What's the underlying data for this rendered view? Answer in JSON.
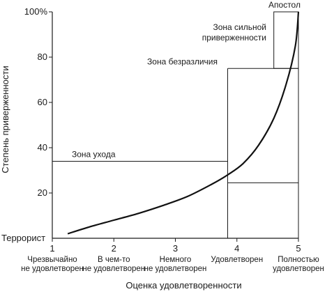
{
  "chart_data": {
    "type": "line",
    "title": "",
    "xlabel": "Оценка удовлетворенности",
    "ylabel": "Степень приверженности",
    "xlim": [
      1,
      5
    ],
    "ylim": [
      0,
      100
    ],
    "x_ticks": [
      {
        "value": 1,
        "label": "1",
        "desc": [
          "Чрезвычайно",
          "не удовлетворен"
        ]
      },
      {
        "value": 2,
        "label": "2",
        "desc": [
          "В чем-то",
          "не удовлетворен"
        ]
      },
      {
        "value": 3,
        "label": "3",
        "desc": [
          "Немного",
          "не удовлетворен"
        ]
      },
      {
        "value": 4,
        "label": "4",
        "desc": [
          "Удовлетворен"
        ]
      },
      {
        "value": 5,
        "label": "5",
        "desc": [
          "Полностью",
          "удовлетворен"
        ]
      }
    ],
    "y_ticks": [
      {
        "value": 20,
        "label": "20"
      },
      {
        "value": 40,
        "label": "40"
      },
      {
        "value": 60,
        "label": "60"
      },
      {
        "value": 80,
        "label": "80"
      },
      {
        "value": 100,
        "label": "100%"
      }
    ],
    "y_origin_label": "Террорист",
    "series": [
      {
        "x": [
          1.25,
          1.6,
          2.0,
          2.4,
          2.8,
          3.2,
          3.6,
          3.85,
          4.1,
          4.35,
          4.6,
          4.8,
          4.95,
          5.0
        ],
        "y": [
          2,
          5,
          8,
          11,
          14.5,
          18.5,
          24,
          28,
          33,
          41,
          53,
          68,
          85,
          100
        ]
      }
    ],
    "zones": [
      {
        "label": [
          "Зона ухода"
        ],
        "x": [
          1,
          3.85
        ],
        "y": [
          0,
          34
        ]
      },
      {
        "label": [
          "Зона безразличия"
        ],
        "x": [
          3.85,
          5.0
        ],
        "y": [
          24.5,
          75
        ]
      },
      {
        "label": [
          "Зона сильной",
          "приверженности"
        ],
        "x": [
          4.6,
          5.0
        ],
        "y": [
          75,
          100
        ]
      },
      {
        "label": [
          "Апостол"
        ],
        "x": [
          4.6,
          5.0
        ],
        "y": [
          100,
          100
        ]
      }
    ],
    "grid": false,
    "legend": "none"
  }
}
